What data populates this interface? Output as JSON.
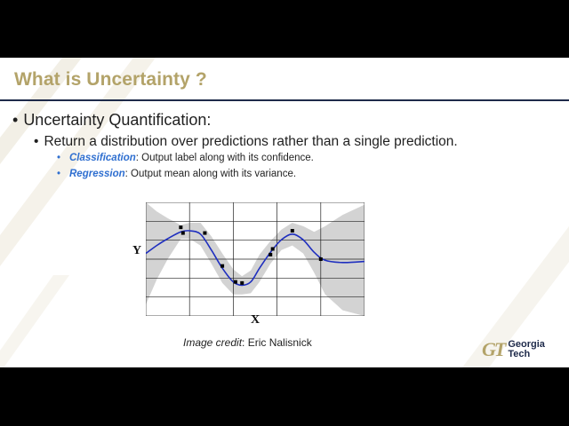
{
  "slide": {
    "title": "What is Uncertainty ?",
    "bullets": {
      "level1": "Uncertainty Quantification:",
      "level2": "Return a distribution over predictions rather than a single prediction.",
      "level3": [
        {
          "keyword": "Classification",
          "text": ": Output label along with its confidence."
        },
        {
          "keyword": "Regression",
          "text": ": Output mean along with its variance."
        }
      ]
    },
    "figure": {
      "y_label": "Y",
      "x_label": "X",
      "credit_italic": "Image credit",
      "credit_rest": ": Eric Nalisnick"
    },
    "logo": {
      "mark": "GT",
      "line1": "Georgia",
      "line2": "Tech"
    }
  },
  "colors": {
    "gold": "#b3a369",
    "navy": "#1e2a4a",
    "accent_blue": "#2f6fd0",
    "band_gray": "#d3d3d3",
    "curve_blue": "#1f2fbf"
  },
  "chart_data": {
    "type": "line",
    "series": [
      {
        "values_mean": [
          [
            0,
            0.55
          ],
          [
            0.05,
            0.62
          ],
          [
            0.1,
            0.68
          ],
          [
            0.16,
            0.74
          ],
          [
            0.2,
            0.75
          ],
          [
            0.25,
            0.72
          ],
          [
            0.3,
            0.58
          ],
          [
            0.35,
            0.42
          ],
          [
            0.4,
            0.3
          ],
          [
            0.44,
            0.27
          ],
          [
            0.48,
            0.3
          ],
          [
            0.52,
            0.42
          ],
          [
            0.57,
            0.56
          ],
          [
            0.62,
            0.67
          ],
          [
            0.67,
            0.72
          ],
          [
            0.72,
            0.67
          ],
          [
            0.77,
            0.56
          ],
          [
            0.82,
            0.49
          ],
          [
            0.9,
            0.47
          ],
          [
            1.0,
            0.48
          ]
        ],
        "band_half_width": [
          0.45,
          0.3,
          0.18,
          0.06,
          0.07,
          0.1,
          0.12,
          0.13,
          0.11,
          0.08,
          0.1,
          0.12,
          0.1,
          0.09,
          0.1,
          0.12,
          0.18,
          0.3,
          0.42,
          0.5
        ]
      }
    ],
    "points": [
      [
        0.16,
        0.78
      ],
      [
        0.17,
        0.73
      ],
      [
        0.27,
        0.73
      ],
      [
        0.35,
        0.44
      ],
      [
        0.41,
        0.3
      ],
      [
        0.44,
        0.29
      ],
      [
        0.57,
        0.54
      ],
      [
        0.58,
        0.59
      ],
      [
        0.67,
        0.75
      ],
      [
        0.8,
        0.5
      ]
    ],
    "grid": true,
    "xlabel": "X",
    "ylabel": "Y"
  }
}
